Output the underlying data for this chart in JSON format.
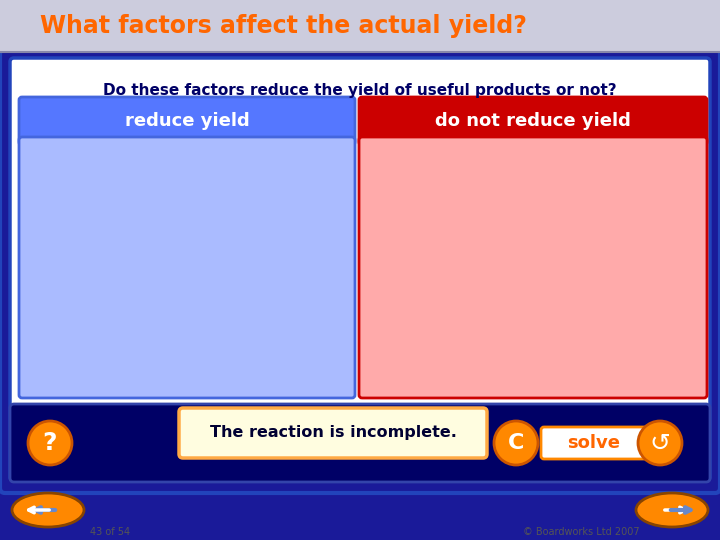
{
  "bg_outer": "#1a1a99",
  "bg_slide": "#ffffff",
  "title_bg": "#ccccdd",
  "title_text": "What factors affect the actual yield?",
  "title_color": "#ff6600",
  "question_text": "Do these factors reduce the yield of useful products or not?",
  "question_color": "#000066",
  "left_header": "reduce yield",
  "right_header": "do not reduce yield",
  "left_header_bg": "#5577ff",
  "right_header_bg": "#cc0000",
  "left_box_bg": "#aabbff",
  "right_box_bg": "#ffaaaa",
  "left_border": "#4466dd",
  "right_border": "#cc0000",
  "card_text": "The reaction is incomplete.",
  "card_bg": "#fffde0",
  "card_border": "#ffaa44",
  "card_text_color": "#000033",
  "solve_btn_bg": "#ff8800",
  "solve_btn_text": "solve",
  "solve_btn_text_color": "#ff6600",
  "solve_btn_border": "#ffffff",
  "bottom_bar_bg": "#000066",
  "bottom_left_text": "43 of 54",
  "bottom_right_text": "© Boardworks Ltd 2007",
  "footer_color": "#555555",
  "nav_btn_color": "#ff8800",
  "nav_btn_border": "#cc5500",
  "outer_border": "#2244bb",
  "slide_border": "#2244bb",
  "bottom_nav_ellipse_color": "#ff8800",
  "bottom_nav_arrow_color": "#6688cc"
}
